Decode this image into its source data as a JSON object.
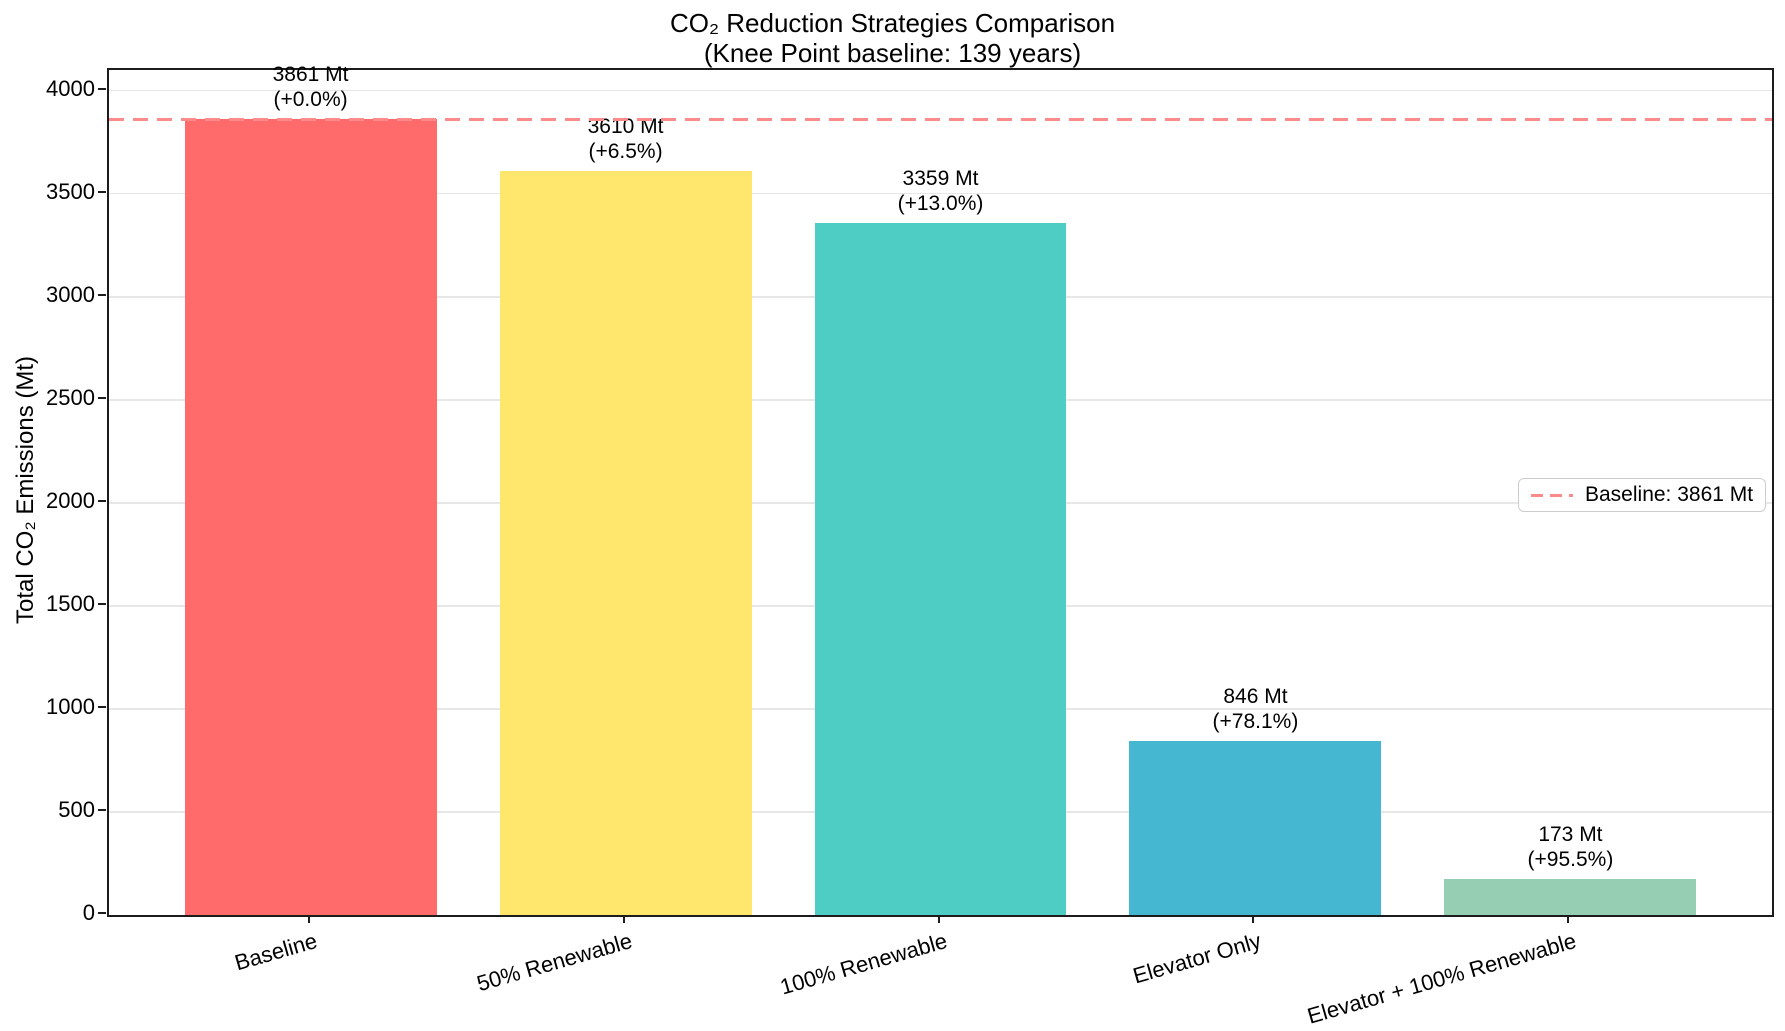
{
  "chart_data": {
    "type": "bar",
    "title": "CO₂ Reduction Strategies Comparison",
    "subtitle": "(Knee Point baseline: 139 years)",
    "ylabel": "Total CO₂ Emissions (Mt)",
    "xlabel": "",
    "categories": [
      "Baseline",
      "50% Renewable",
      "100% Renewable",
      "Elevator Only",
      "Elevator + 100% Renewable"
    ],
    "values": [
      3861,
      3610,
      3359,
      846,
      173
    ],
    "value_labels": [
      "3861 Mt",
      "3610 Mt",
      "3359 Mt",
      "846 Mt",
      "173 Mt"
    ],
    "pct_labels": [
      "(+0.0%)",
      "(+6.5%)",
      "(+13.0%)",
      "(+78.1%)",
      "(+95.5%)"
    ],
    "bar_colors": [
      "#FF6B6B",
      "#FFE66D",
      "#4ECDC4",
      "#45B7D1",
      "#96CEB4"
    ],
    "yticks": [
      0,
      500,
      1000,
      1500,
      2000,
      2500,
      3000,
      3500,
      4000
    ],
    "ylim": [
      0,
      4100
    ],
    "grid": true,
    "baseline": {
      "value": 3861,
      "label": "Baseline: 3861 Mt",
      "color": "#fb8b8b"
    },
    "legend_position": "center-right"
  }
}
